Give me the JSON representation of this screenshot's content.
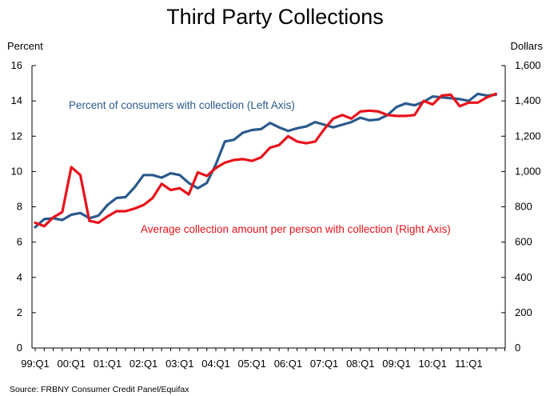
{
  "chart_data": {
    "type": "line",
    "title": "Third Party Collections",
    "ylabel_left": "Percent",
    "ylabel_right": "Dollars",
    "source": "Source: FRBNY Consumer Credit Panel/Equifax",
    "xticks": [
      "99:Q1",
      "00:Q1",
      "01:Q1",
      "02:Q1",
      "03:Q1",
      "04:Q1",
      "05:Q1",
      "06:Q1",
      "07:Q1",
      "08:Q1",
      "09:Q1",
      "10:Q1",
      "11:Q1"
    ],
    "yleft_ticks": [
      "0",
      "2",
      "4",
      "6",
      "8",
      "10",
      "12",
      "14",
      "16"
    ],
    "yright_ticks": [
      "0",
      "200",
      "400",
      "600",
      "800",
      "1,000",
      "1,200",
      "1,400",
      "1,600"
    ],
    "ylim_left": [
      0,
      16
    ],
    "ylim_right": [
      0,
      1600
    ],
    "series": [
      {
        "name": "Percent of consumers with collection (Left Axis)",
        "axis": "left",
        "color": "#2b5a8c",
        "values": [
          6.85,
          7.3,
          7.35,
          7.25,
          7.55,
          7.65,
          7.35,
          7.5,
          8.1,
          8.5,
          8.55,
          9.1,
          9.8,
          9.8,
          9.65,
          9.9,
          9.8,
          9.35,
          9.05,
          9.35,
          10.4,
          11.7,
          11.8,
          12.2,
          12.35,
          12.4,
          12.75,
          12.5,
          12.3,
          12.45,
          12.55,
          12.8,
          12.65,
          12.5,
          12.65,
          12.8,
          13.05,
          12.9,
          12.95,
          13.2,
          13.65,
          13.85,
          13.75,
          13.95,
          14.25,
          14.2,
          14.15,
          14.1,
          14.0,
          14.4,
          14.3,
          14.35
        ]
      },
      {
        "name": "Average collection amount per person with collection (Right Axis)",
        "axis": "right",
        "color": "#e8121b",
        "values": [
          710,
          690,
          740,
          770,
          1025,
          980,
          720,
          710,
          745,
          775,
          775,
          790,
          810,
          850,
          930,
          895,
          905,
          870,
          995,
          975,
          1020,
          1050,
          1065,
          1070,
          1060,
          1080,
          1135,
          1150,
          1200,
          1170,
          1160,
          1170,
          1240,
          1300,
          1320,
          1300,
          1340,
          1345,
          1340,
          1320,
          1315,
          1315,
          1320,
          1400,
          1380,
          1430,
          1435,
          1370,
          1390,
          1390,
          1420,
          1440
        ]
      }
    ],
    "grid": false,
    "legend": "inline-annotations"
  }
}
